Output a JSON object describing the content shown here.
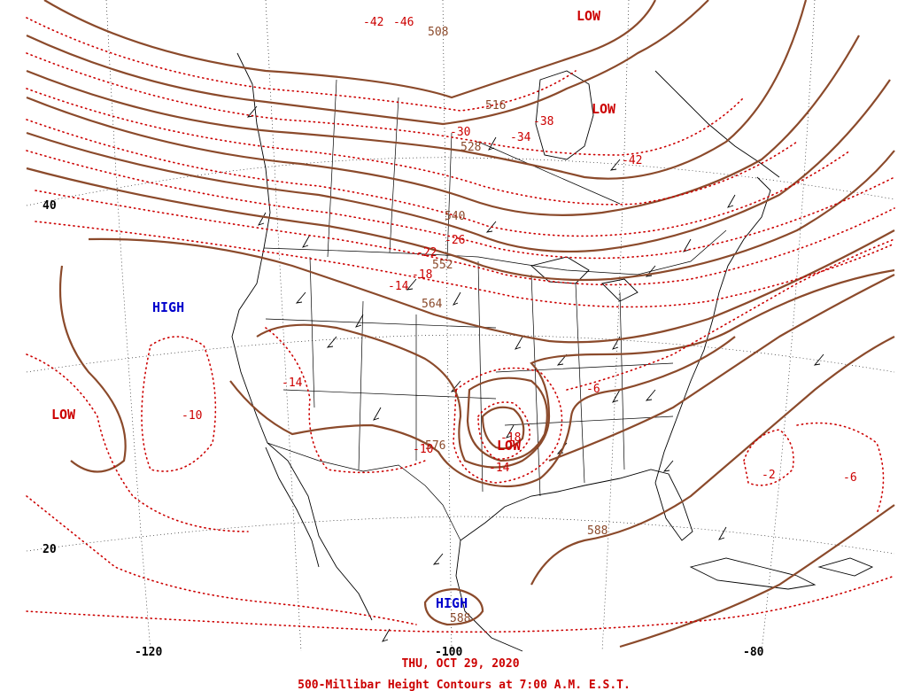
{
  "footer": {
    "date": "THU, OCT 29, 2020",
    "title": "500-Millibar Height Contours at 7:00 A.M. E.S.T."
  },
  "lat_labels": [
    "40",
    "20"
  ],
  "lon_labels": [
    "-120",
    "-100",
    "-80"
  ],
  "height_labels": [
    "508",
    "516",
    "528",
    "540",
    "552",
    "564",
    "576",
    "588",
    "588"
  ],
  "temp_labels": [
    "-42",
    "-46",
    "-38",
    "-34",
    "-30",
    "-42",
    "-26",
    "-22",
    "-18",
    "-14",
    "-14",
    "-10",
    "-10",
    "-14",
    "-18",
    "-6",
    "-2",
    "-6"
  ],
  "pressure_centers": {
    "lows": [
      "LOW",
      "LOW",
      "LOW",
      "LOW"
    ],
    "highs": [
      "HIGH",
      "HIGH"
    ]
  },
  "colors": {
    "height_contour": "#8B4A2B",
    "temperature_contour": "#CC0000",
    "low_label": "#CC0000",
    "high_label": "#0000CC"
  }
}
